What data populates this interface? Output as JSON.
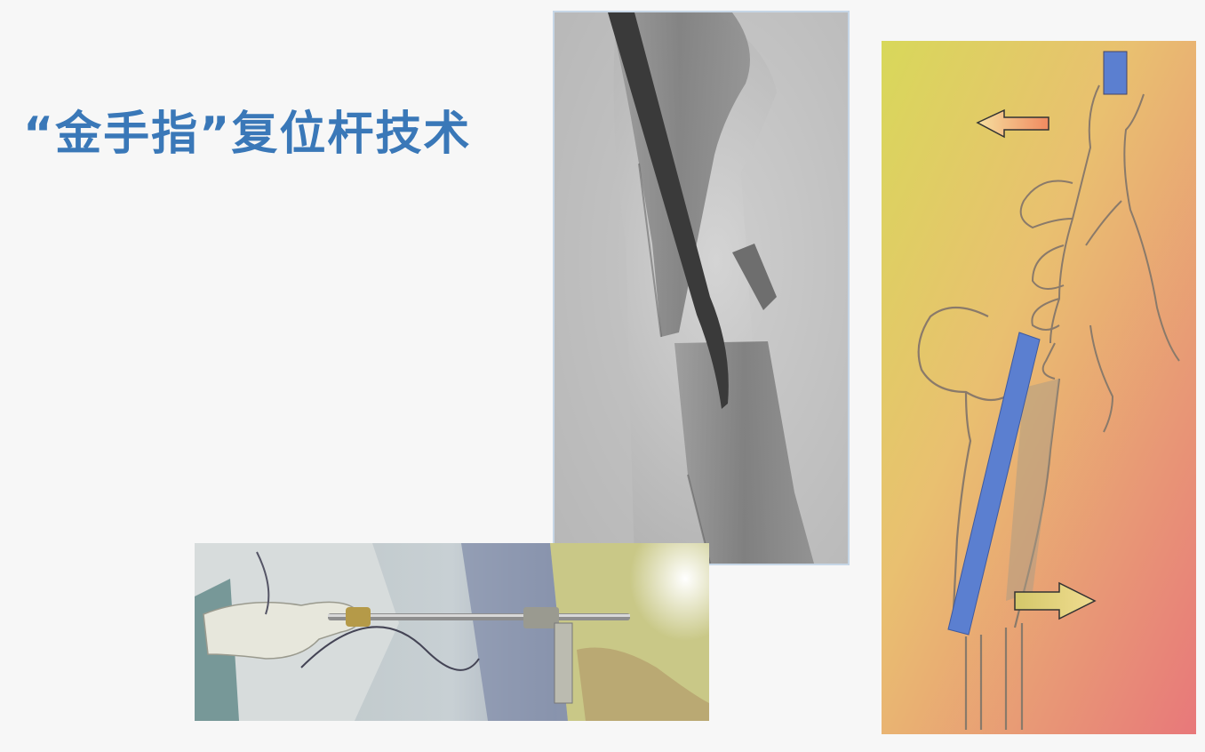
{
  "slide": {
    "title": "“金手指”复位杆技术"
  },
  "images": {
    "xray": {
      "icon": "xray-image"
    },
    "photo": {
      "icon": "surgery-photo"
    },
    "illustration": {
      "icon": "reduction-illustration"
    }
  },
  "colors": {
    "title": "#3a78b8",
    "rod": "#5b7fd0",
    "arrow_left": "#f0a070",
    "arrow_right": "#e4d080"
  }
}
